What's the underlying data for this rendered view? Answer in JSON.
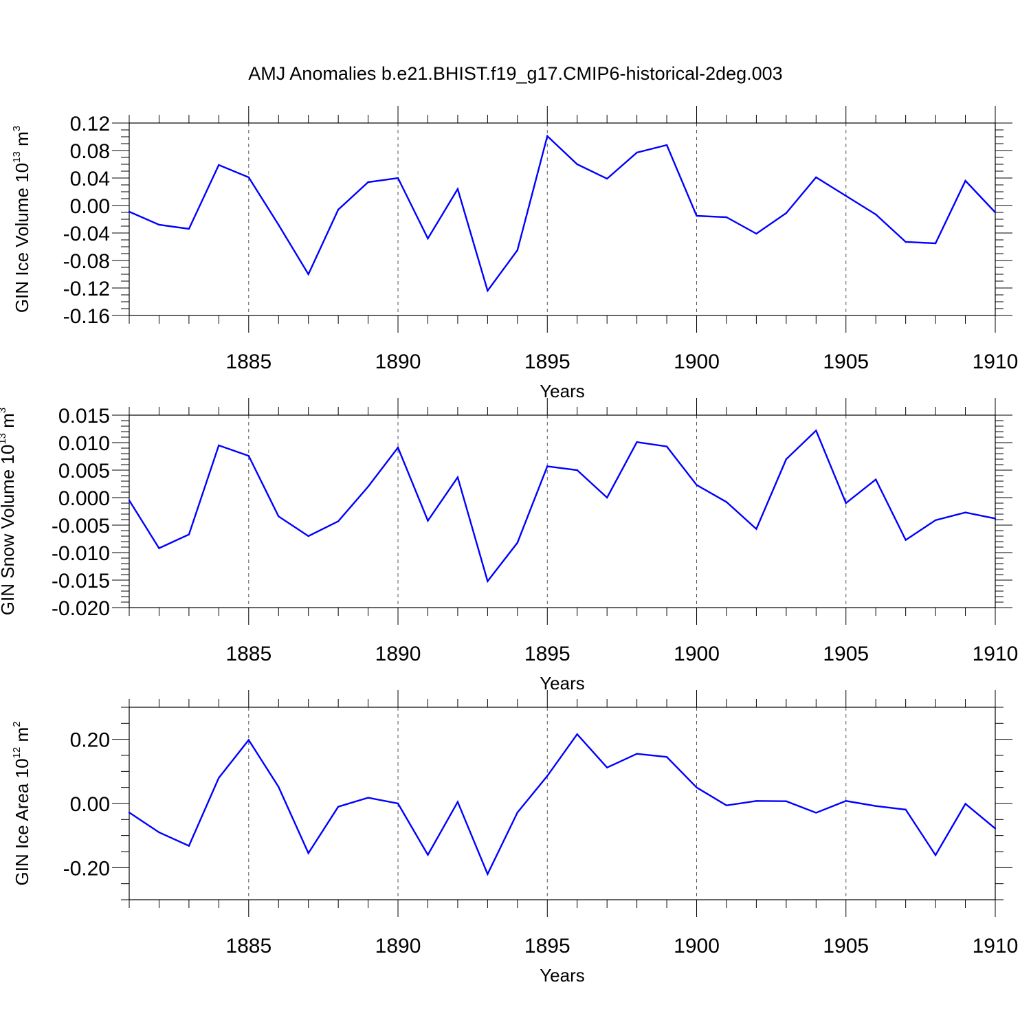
{
  "chart_data": [
    {
      "type": "line",
      "title": "AMJ Anomalies b.e21.BHIST.f19_g17.CMIP6-historical-2deg.003",
      "ylabel": {
        "base": "GIN Ice Volume 10",
        "exp": "13",
        "unit": " m",
        "unit_exp": "3"
      },
      "xlabel": "Years",
      "xlim": [
        1881,
        1910
      ],
      "ylim": [
        -0.16,
        0.12
      ],
      "yticks": [
        0.12,
        0.08,
        0.04,
        0.0,
        -0.04,
        -0.08,
        -0.12,
        -0.16
      ],
      "ytick_labels": [
        "0.12",
        "0.08",
        "0.04",
        "0.00",
        "-0.04",
        "-0.08",
        "-0.12",
        "-0.16"
      ],
      "yminor_step": 0.01,
      "xticks": [
        1885,
        1890,
        1895,
        1900,
        1905,
        1910
      ],
      "xtick_labels": [
        "1885",
        "1890",
        "1895",
        "1900",
        "1905",
        "1910"
      ],
      "grid_x": true,
      "color": "#0000ff",
      "x": [
        1881,
        1882,
        1883,
        1884,
        1885,
        1886,
        1887,
        1888,
        1889,
        1890,
        1891,
        1892,
        1893,
        1894,
        1895,
        1896,
        1897,
        1898,
        1899,
        1900,
        1901,
        1902,
        1903,
        1904,
        1905,
        1906,
        1907,
        1908,
        1909,
        1910
      ],
      "values": [
        -0.009,
        -0.028,
        -0.034,
        0.059,
        0.041,
        -0.028,
        -0.1,
        -0.006,
        0.034,
        0.04,
        -0.048,
        0.024,
        -0.124,
        -0.065,
        0.101,
        0.06,
        0.039,
        0.077,
        0.088,
        -0.015,
        -0.017,
        -0.041,
        -0.011,
        0.041,
        0.014,
        -0.013,
        -0.053,
        -0.055,
        0.036,
        -0.01
      ]
    },
    {
      "type": "line",
      "ylabel": {
        "base": "GIN Snow Volume 10",
        "exp": "13",
        "unit": " m",
        "unit_exp": "3"
      },
      "xlabel": "Years",
      "xlim": [
        1881,
        1910
      ],
      "ylim": [
        -0.02,
        0.015
      ],
      "yticks": [
        0.015,
        0.01,
        0.005,
        0.0,
        -0.005,
        -0.01,
        -0.015,
        -0.02
      ],
      "ytick_labels": [
        "0.015",
        "0.010",
        "0.005",
        "0.000",
        "-0.005",
        "-0.010",
        "-0.015",
        "-0.020"
      ],
      "yminor_step": 0.001,
      "xticks": [
        1885,
        1890,
        1895,
        1900,
        1905,
        1910
      ],
      "xtick_labels": [
        "1885",
        "1890",
        "1895",
        "1900",
        "1905",
        "1910"
      ],
      "grid_x": true,
      "color": "#0000ff",
      "x": [
        1881,
        1882,
        1883,
        1884,
        1885,
        1886,
        1887,
        1888,
        1889,
        1890,
        1891,
        1892,
        1893,
        1894,
        1895,
        1896,
        1897,
        1898,
        1899,
        1900,
        1901,
        1902,
        1903,
        1904,
        1905,
        1906,
        1907,
        1908,
        1909,
        1910
      ],
      "values": [
        -0.0005,
        -0.0092,
        -0.0067,
        0.0095,
        0.0076,
        -0.0034,
        -0.007,
        -0.0043,
        0.002,
        0.0091,
        -0.0042,
        0.0037,
        -0.0152,
        -0.0082,
        0.0057,
        0.005,
        0.0,
        0.0101,
        0.0093,
        0.0023,
        -0.0008,
        -0.0057,
        0.007,
        0.0122,
        -0.001,
        0.0033,
        -0.0077,
        -0.0041,
        -0.0027,
        -0.0038
      ]
    },
    {
      "type": "line",
      "ylabel": {
        "base": "GIN Ice Area 10",
        "exp": "12",
        "unit": " m",
        "unit_exp": "2"
      },
      "xlabel": "Years",
      "xlim": [
        1881,
        1910
      ],
      "ylim": [
        -0.3,
        0.3
      ],
      "yticks": [
        0.2,
        0.0,
        -0.2
      ],
      "ytick_labels": [
        "0.20",
        "0.00",
        "-0.20"
      ],
      "yminor_step": 0.05,
      "xticks": [
        1885,
        1890,
        1895,
        1900,
        1905,
        1910
      ],
      "xtick_labels": [
        "1885",
        "1890",
        "1895",
        "1900",
        "1905",
        "1910"
      ],
      "grid_x": true,
      "color": "#0000ff",
      "x": [
        1881,
        1882,
        1883,
        1884,
        1885,
        1886,
        1887,
        1888,
        1889,
        1890,
        1891,
        1892,
        1893,
        1894,
        1895,
        1896,
        1897,
        1898,
        1899,
        1900,
        1901,
        1902,
        1903,
        1904,
        1905,
        1906,
        1907,
        1908,
        1909,
        1910
      ],
      "values": [
        -0.028,
        -0.09,
        -0.132,
        0.08,
        0.198,
        0.052,
        -0.155,
        -0.01,
        0.018,
        0.0,
        -0.16,
        0.005,
        -0.22,
        -0.028,
        0.086,
        0.216,
        0.112,
        0.155,
        0.145,
        0.05,
        -0.006,
        0.008,
        0.007,
        -0.029,
        0.008,
        -0.008,
        -0.019,
        -0.161,
        -0.001,
        -0.078
      ]
    }
  ]
}
